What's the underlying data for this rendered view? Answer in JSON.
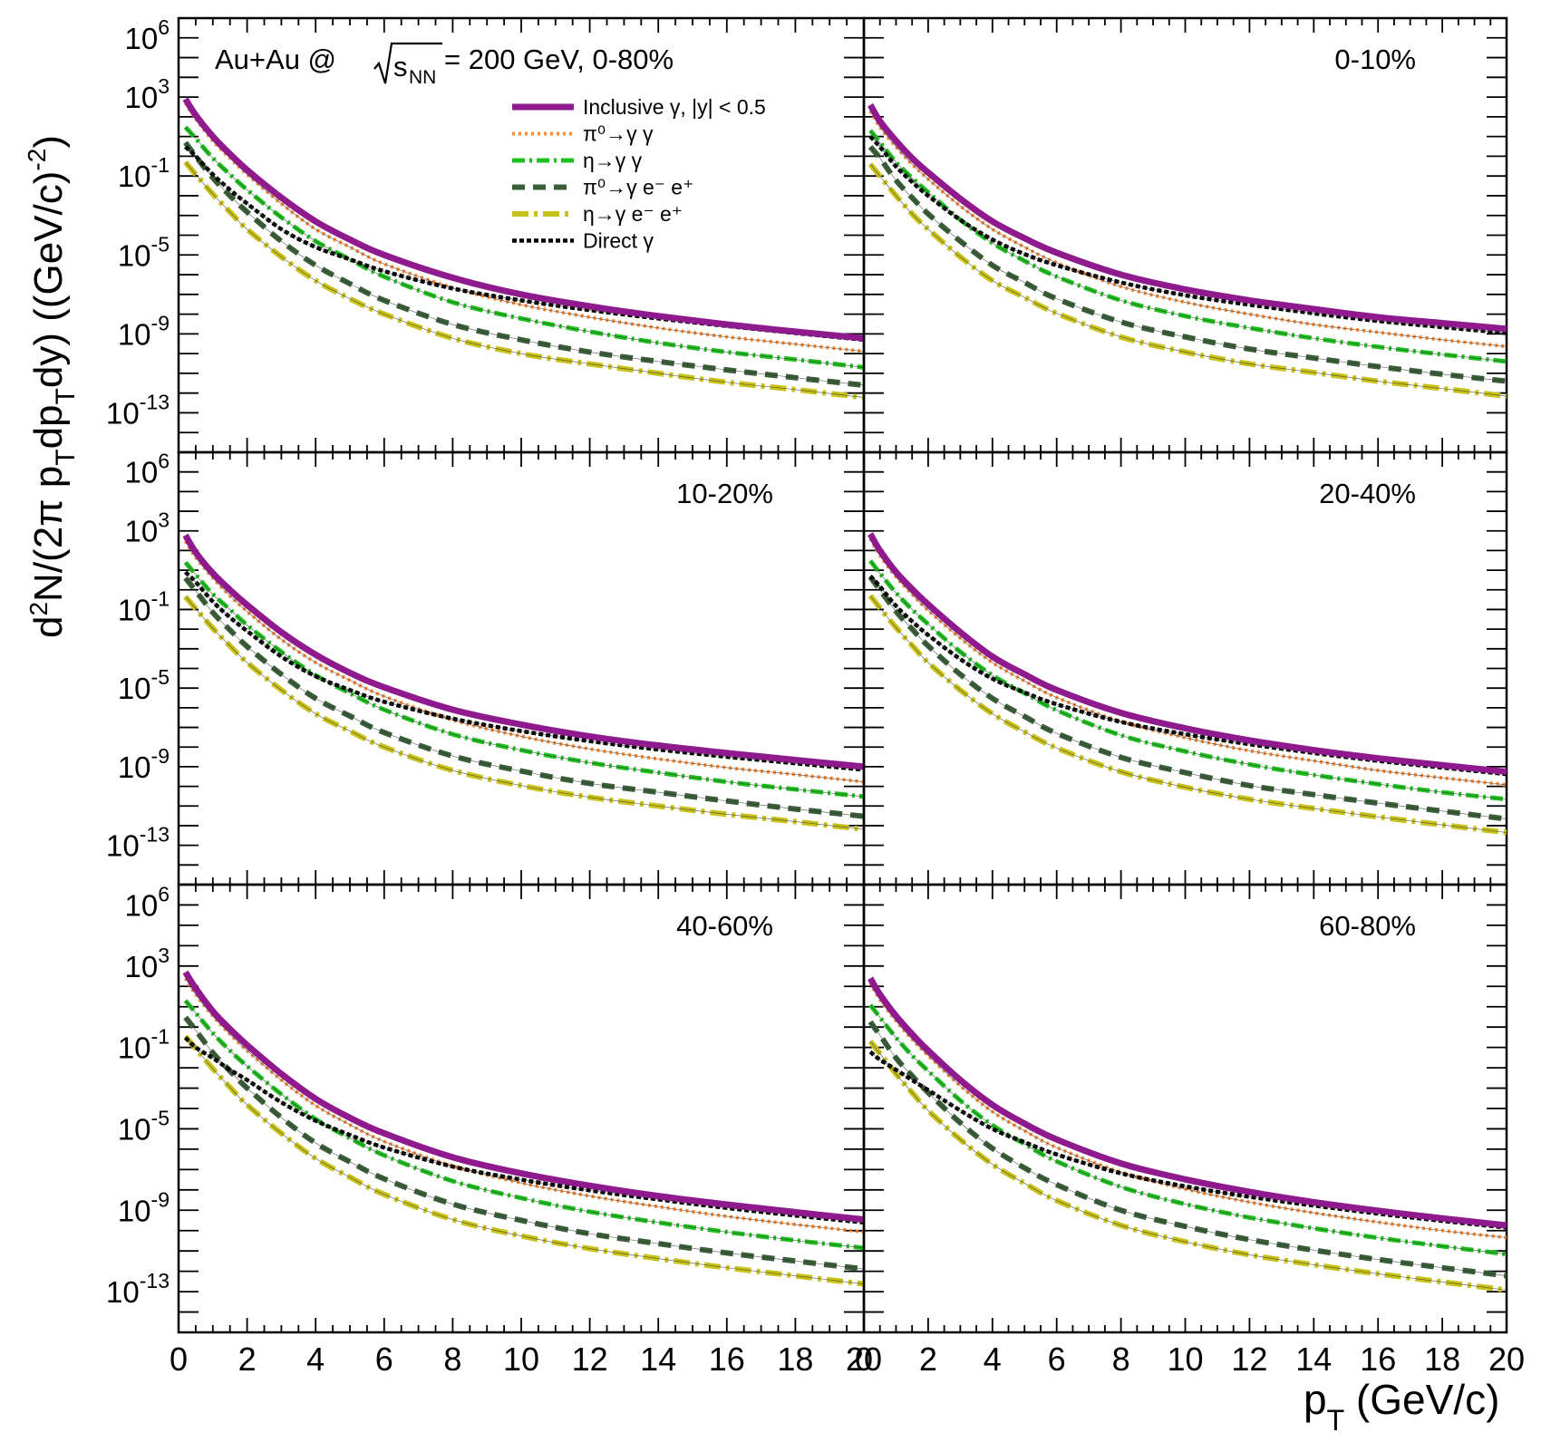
{
  "figure": {
    "title": "Au+Au @ √s_NN = 200 GeV,  0-80%",
    "title_parts": {
      "prefix": "Au+Au @ ",
      "root": "s",
      "root_sub": "NN",
      "suffix": " = 200 GeV,  0-80%"
    },
    "ylabel": "d²N/(2π p_T dp_T dy)  ((GeV/c)⁻²)",
    "ylabel_parts": {
      "d": "d",
      "sup2": "2",
      "mid": "N/(2π p",
      "subT1": "T",
      "dp": "dp",
      "subT2": "T",
      "dy": "dy)  ((GeV/c)",
      "supm2": "-2",
      "close": ")"
    },
    "xlabel": "p_T (GeV/c)",
    "xlabel_parts": {
      "p": "p",
      "sub": "T",
      "unit": " (GeV/c)"
    },
    "y_tick_labels": [
      {
        "base": "10",
        "exp": "6"
      },
      {
        "base": "10",
        "exp": "3"
      },
      {
        "base": "10",
        "exp": "-1"
      },
      {
        "base": "10",
        "exp": "-5"
      },
      {
        "base": "10",
        "exp": "-9"
      },
      {
        "base": "10",
        "exp": "-13"
      }
    ],
    "x_tick_labels": [
      "0",
      "2",
      "4",
      "6",
      "8",
      "10",
      "12",
      "14",
      "16",
      "18",
      "20"
    ],
    "legend": [
      {
        "label": "Inclusive γ, |y| < 0.5",
        "series": "inclusive"
      },
      {
        "label": "π⁰→γ γ",
        "series": "pi0_gg"
      },
      {
        "label": "η→γ γ",
        "series": "eta_gg"
      },
      {
        "label": "π⁰→γ e⁻ e⁺",
        "series": "pi0_gee"
      },
      {
        "label": "η→γ e⁻ e⁺",
        "series": "eta_gee"
      },
      {
        "label": "Direct γ",
        "series": "direct"
      }
    ],
    "colors": {
      "inclusive": "#8e1a8e",
      "pi0_gg": "#ff8c33",
      "eta_gg": "#1fc01f",
      "pi0_gee": "#3a5e38",
      "eta_gee": "#c9c21a",
      "direct": "#000000"
    }
  },
  "chart_data": [
    {
      "type": "line",
      "panel": "0-80%",
      "label": "",
      "xlim": [
        0,
        20
      ],
      "ylim": [
        1e-15,
        10000000.0
      ],
      "yscale": "log",
      "x": [
        0.2,
        0.5,
        1,
        1.5,
        2,
        3,
        4,
        5,
        6,
        8,
        10,
        12,
        14,
        16,
        18,
        20
      ],
      "series": [
        {
          "name": "Inclusive γ, |y| < 0.5",
          "key": "inclusive",
          "values": [
            800,
            120,
            10,
            1.3,
            0.2,
            0.008,
            0.0005,
            6e-05,
            1e-05,
            7e-07,
            1e-07,
            2.5e-08,
            8e-09,
            3e-09,
            1.3e-09,
            6e-10
          ]
        },
        {
          "name": "π⁰→γ γ",
          "key": "pi0_gg",
          "values": [
            500,
            80,
            6,
            0.8,
            0.12,
            0.004,
            0.0002,
            2.5e-05,
            3.5e-06,
            2.2e-07,
            3e-08,
            7e-09,
            2e-09,
            7e-10,
            3e-10,
            1.3e-10
          ]
        },
        {
          "name": "η→γ γ",
          "key": "eta_gg",
          "values": [
            30,
            8,
            0.8,
            0.12,
            0.02,
            0.0008,
            5e-05,
            6e-06,
            8e-07,
            4e-08,
            6e-09,
            1.3e-09,
            3.5e-10,
            1.2e-10,
            5e-11,
            2e-11
          ]
        },
        {
          "name": "π⁰→γ e⁻ e⁺",
          "key": "pi0_gee",
          "values": [
            5,
            1,
            0.08,
            0.01,
            0.0015,
            5e-05,
            3e-06,
            3.5e-07,
            5e-08,
            3e-09,
            5e-10,
            1.2e-10,
            4e-11,
            1.5e-11,
            6e-12,
            2.5e-12
          ]
        },
        {
          "name": "η→γ e⁻ e⁺",
          "key": "eta_gee",
          "values": [
            0.5,
            0.12,
            0.012,
            0.0015,
            0.0002,
            8e-06,
            5e-07,
            6e-08,
            1e-08,
            6e-10,
            1e-10,
            3e-11,
            1e-11,
            3.5e-12,
            1.5e-12,
            6e-13
          ]
        },
        {
          "name": "Direct γ",
          "key": "direct",
          "values": [
            3,
            1,
            0.12,
            0.02,
            0.004,
            0.0002,
            2.5e-05,
            6e-06,
            1.5e-06,
            2e-07,
            5e-08,
            1.6e-08,
            6e-09,
            2.5e-09,
            1.1e-09,
            5e-10
          ]
        }
      ]
    },
    {
      "type": "line",
      "panel": "0-10%",
      "label": "0-10%",
      "xlim": [
        0,
        20
      ],
      "ylim": [
        1e-15,
        10000000.0
      ],
      "yscale": "log",
      "x": [
        0.2,
        0.5,
        1,
        1.5,
        2,
        3,
        4,
        5,
        6,
        8,
        10,
        12,
        14,
        16,
        18,
        20
      ],
      "series": [
        {
          "name": "Inclusive γ, |y| < 0.5",
          "key": "inclusive",
          "values": [
            400,
            60,
            6,
            0.8,
            0.15,
            0.007,
            0.0005,
            7e-05,
            1.3e-05,
            1e-06,
            1.8e-07,
            5e-08,
            1.8e-08,
            7e-09,
            3.5e-09,
            1.8e-09
          ]
        },
        {
          "name": "π⁰→γ γ",
          "key": "pi0_gg",
          "values": [
            200,
            30,
            3,
            0.4,
            0.07,
            0.003,
            0.0002,
            2.5e-05,
            4e-06,
            2.5e-07,
            4e-08,
            1e-08,
            3e-09,
            1.2e-09,
            5e-10,
            2.3e-10
          ]
        },
        {
          "name": "η→γ γ",
          "key": "eta_gg",
          "values": [
            20,
            5,
            0.5,
            0.08,
            0.015,
            0.0006,
            4e-05,
            5e-06,
            8e-07,
            5e-08,
            8e-09,
            2e-09,
            6e-10,
            2.2e-10,
            9e-11,
            4e-11
          ]
        },
        {
          "name": "π⁰→γ e⁻ e⁺",
          "key": "pi0_gee",
          "values": [
            3,
            0.8,
            0.06,
            0.008,
            0.0012,
            5e-05,
            3e-06,
            4e-07,
            6e-08,
            4e-09,
            7e-10,
            1.7e-10,
            6e-11,
            2.2e-11,
            9e-12,
            4e-12
          ]
        },
        {
          "name": "η→γ e⁻ e⁺",
          "key": "eta_gee",
          "values": [
            0.4,
            0.1,
            0.01,
            0.0012,
            0.0002,
            8e-06,
            5e-07,
            7e-08,
            1.1e-08,
            7e-10,
            1.2e-10,
            3e-11,
            1.1e-11,
            4e-12,
            1.7e-12,
            7e-13
          ]
        },
        {
          "name": "Direct γ",
          "key": "direct",
          "values": [
            10,
            3,
            0.3,
            0.05,
            0.01,
            0.0006,
            6e-05,
            1.1e-05,
            3e-06,
            4e-07,
            9e-08,
            3e-08,
            1.1e-08,
            4.5e-09,
            2.2e-09,
            1.1e-09
          ]
        }
      ]
    },
    {
      "type": "line",
      "panel": "10-20%",
      "label": "10-20%",
      "xlim": [
        0,
        20
      ],
      "ylim": [
        1e-15,
        10000000.0
      ],
      "yscale": "log",
      "x": [
        0.2,
        0.5,
        1,
        1.5,
        2,
        3,
        4,
        5,
        6,
        8,
        10,
        12,
        14,
        16,
        18,
        20
      ],
      "series": [
        {
          "name": "Inclusive γ, |y| < 0.5",
          "key": "inclusive",
          "values": [
            600,
            80,
            7,
            1,
            0.17,
            0.007,
            0.0005,
            6e-05,
            1.1e-05,
            8e-07,
            1.4e-07,
            3.5e-08,
            1.2e-08,
            5e-09,
            2.2e-09,
            1e-09
          ]
        },
        {
          "name": "π⁰→γ γ",
          "key": "pi0_gg",
          "values": [
            300,
            45,
            4,
            0.5,
            0.08,
            0.003,
            0.0002,
            2.5e-05,
            3.8e-06,
            2.4e-07,
            3.5e-08,
            8e-09,
            2.5e-09,
            9e-10,
            4e-10,
            1.7e-10
          ]
        },
        {
          "name": "η→γ γ",
          "key": "eta_gg",
          "values": [
            25,
            6,
            0.6,
            0.1,
            0.016,
            0.0007,
            4.5e-05,
            5.5e-06,
            8e-07,
            4.5e-08,
            7e-09,
            1.6e-09,
            5e-10,
            1.7e-10,
            7e-11,
            3e-11
          ]
        },
        {
          "name": "π⁰→γ e⁻ e⁺",
          "key": "pi0_gee",
          "values": [
            4,
            0.9,
            0.07,
            0.009,
            0.0013,
            5e-05,
            3e-06,
            3.8e-07,
            5.5e-08,
            3.5e-09,
            6e-10,
            1.4e-10,
            5e-11,
            1.8e-11,
            7e-12,
            3e-12
          ]
        },
        {
          "name": "η→γ e⁻ e⁺",
          "key": "eta_gee",
          "values": [
            0.45,
            0.11,
            0.011,
            0.0014,
            0.0002,
            8e-06,
            5e-07,
            6.5e-08,
            1e-08,
            6.5e-10,
            1.1e-10,
            2.8e-11,
            1e-11,
            3.8e-12,
            1.6e-12,
            6.5e-13
          ]
        },
        {
          "name": "Direct γ",
          "key": "direct",
          "values": [
            8,
            2.5,
            0.25,
            0.04,
            0.008,
            0.0004,
            4e-05,
            8e-06,
            2e-06,
            2.8e-07,
            6.5e-08,
            2e-08,
            7.5e-09,
            3.2e-09,
            1.5e-09,
            7e-10
          ]
        }
      ]
    },
    {
      "type": "line",
      "panel": "20-40%",
      "label": "20-40%",
      "xlim": [
        0,
        20
      ],
      "ylim": [
        1e-15,
        10000000.0
      ],
      "yscale": "log",
      "x": [
        0.2,
        0.5,
        1,
        1.5,
        2,
        3,
        4,
        5,
        6,
        8,
        10,
        12,
        14,
        16,
        18,
        20
      ],
      "series": [
        {
          "name": "Inclusive γ, |y| < 0.5",
          "key": "inclusive",
          "values": [
            700,
            100,
            8,
            1.1,
            0.18,
            0.007,
            0.0004,
            5e-05,
            8e-06,
            5.5e-07,
            9e-08,
            2.2e-08,
            7e-09,
            2.7e-09,
            1.2e-09,
            5.5e-10
          ]
        },
        {
          "name": "π⁰→γ γ",
          "key": "pi0_gg",
          "values": [
            400,
            55,
            4.5,
            0.6,
            0.09,
            0.0035,
            0.0002,
            2.3e-05,
            3.3e-06,
            2e-07,
            3e-08,
            6.5e-09,
            2e-09,
            6.5e-10,
            2.7e-10,
            1.2e-10
          ]
        },
        {
          "name": "η→γ γ",
          "key": "eta_gg",
          "values": [
            30,
            7,
            0.7,
            0.1,
            0.018,
            0.0007,
            4.5e-05,
            5.5e-06,
            7.5e-07,
            4e-08,
            6e-09,
            1.3e-09,
            3.8e-10,
            1.3e-10,
            5e-11,
            2.2e-11
          ]
        },
        {
          "name": "π⁰→γ e⁻ e⁺",
          "key": "pi0_gee",
          "values": [
            4.5,
            1,
            0.08,
            0.01,
            0.0014,
            5e-05,
            3e-06,
            3.6e-07,
            5e-08,
            3e-09,
            5e-10,
            1.1e-10,
            3.8e-11,
            1.4e-11,
            5.5e-12,
            2.2e-12
          ]
        },
        {
          "name": "η→γ e⁻ e⁺",
          "key": "eta_gee",
          "values": [
            0.5,
            0.12,
            0.012,
            0.0015,
            0.0002,
            8e-06,
            5e-07,
            6e-08,
            9e-09,
            5.5e-10,
            9e-11,
            2.2e-11,
            7.5e-12,
            2.8e-12,
            1.1e-12,
            4.5e-13
          ]
        },
        {
          "name": "Direct γ",
          "key": "direct",
          "values": [
            5,
            1.5,
            0.15,
            0.025,
            0.005,
            0.0003,
            3e-05,
            6e-06,
            1.5e-06,
            1.9e-07,
            4.5e-08,
            1.4e-08,
            5e-09,
            2e-09,
            9e-10,
            4.2e-10
          ]
        }
      ]
    },
    {
      "type": "line",
      "panel": "40-60%",
      "label": "40-60%",
      "xlim": [
        0,
        20
      ],
      "ylim": [
        1e-15,
        10000000.0
      ],
      "yscale": "log",
      "x": [
        0.2,
        0.5,
        1,
        1.5,
        2,
        3,
        4,
        5,
        6,
        8,
        10,
        12,
        14,
        16,
        18,
        20
      ],
      "series": [
        {
          "name": "Inclusive γ, |y| < 0.5",
          "key": "inclusive",
          "values": [
            500,
            80,
            6,
            0.8,
            0.13,
            0.005,
            0.0003,
            3.5e-05,
            6e-06,
            4e-07,
            6.5e-08,
            1.6e-08,
            5e-09,
            1.9e-09,
            8e-10,
            3.5e-10
          ]
        },
        {
          "name": "π⁰→γ γ",
          "key": "pi0_gg",
          "values": [
            250,
            40,
            3.5,
            0.45,
            0.07,
            0.0025,
            0.00014,
            1.6e-05,
            2.4e-06,
            1.5e-07,
            2.2e-08,
            5e-09,
            1.5e-09,
            5e-10,
            2e-10,
            8.5e-11
          ]
        },
        {
          "name": "η→γ γ",
          "key": "eta_gg",
          "values": [
            20,
            5,
            0.5,
            0.07,
            0.012,
            0.0005,
            3e-05,
            3.5e-06,
            5e-07,
            2.7e-08,
            4e-09,
            8.5e-10,
            2.5e-10,
            8.5e-11,
            3.3e-11,
            1.4e-11
          ]
        },
        {
          "name": "π⁰→γ e⁻ e⁺",
          "key": "pi0_gee",
          "values": [
            3,
            0.7,
            0.055,
            0.007,
            0.001,
            3.6e-05,
            2e-06,
            2.4e-07,
            3.5e-08,
            2e-09,
            3.2e-10,
            7e-11,
            2.3e-11,
            8e-12,
            3.2e-12,
            1.3e-12
          ]
        },
        {
          "name": "η→γ e⁻ e⁺",
          "key": "eta_gee",
          "values": [
            0.35,
            0.09,
            0.009,
            0.0011,
            0.00015,
            6e-06,
            3.5e-07,
            4.2e-08,
            6e-09,
            3.5e-10,
            5.5e-11,
            1.3e-11,
            4.2e-12,
            1.5e-12,
            6e-13,
            2.4e-13
          ]
        },
        {
          "name": "Direct γ",
          "key": "direct",
          "values": [
            0.3,
            0.1,
            0.03,
            0.008,
            0.0025,
            0.0002,
            2.5e-05,
            5e-06,
            1.2e-06,
            1.4e-07,
            3.2e-08,
            9.5e-09,
            3.4e-09,
            1.3e-09,
            5.5e-10,
            2.5e-10
          ]
        }
      ]
    },
    {
      "type": "line",
      "panel": "60-80%",
      "label": "60-80%",
      "xlim": [
        0,
        20
      ],
      "ylim": [
        1e-15,
        10000000.0
      ],
      "yscale": "log",
      "x": [
        0.2,
        0.5,
        1,
        1.5,
        2,
        3,
        4,
        5,
        6,
        8,
        10,
        12,
        14,
        16,
        18,
        20
      ],
      "series": [
        {
          "name": "Inclusive γ, |y| < 0.5",
          "key": "inclusive",
          "values": [
            250,
            40,
            3.5,
            0.45,
            0.07,
            0.0025,
            0.00015,
            1.8e-05,
            3e-06,
            2e-07,
            3.3e-08,
            8e-09,
            2.5e-09,
            9.5e-10,
            4e-10,
            1.8e-10
          ]
        },
        {
          "name": "π⁰→γ γ",
          "key": "pi0_gg",
          "values": [
            150,
            22,
            2,
            0.25,
            0.04,
            0.0013,
            7e-05,
            8e-06,
            1.2e-06,
            7.5e-08,
            1.1e-08,
            2.5e-09,
            7.5e-10,
            2.6e-10,
            1e-10,
            4.5e-11
          ]
        },
        {
          "name": "η→γ γ",
          "key": "eta_gg",
          "values": [
            12,
            3,
            0.3,
            0.04,
            0.007,
            0.00025,
            1.5e-05,
            1.8e-06,
            2.5e-07,
            1.4e-08,
            2e-09,
            4.4e-10,
            1.3e-10,
            4.4e-11,
            1.7e-11,
            7e-12
          ]
        },
        {
          "name": "π⁰→γ e⁻ e⁺",
          "key": "pi0_gee",
          "values": [
            1.8,
            0.4,
            0.03,
            0.004,
            0.0006,
            2e-05,
            1.1e-06,
            1.2e-07,
            1.8e-08,
            1e-09,
            1.6e-10,
            3.6e-11,
            1.1e-11,
            3.8e-12,
            1.5e-12,
            6e-13
          ]
        },
        {
          "name": "η→γ e⁻ e⁺",
          "key": "eta_gee",
          "values": [
            0.2,
            0.05,
            0.005,
            0.0006,
            8e-05,
            3e-06,
            1.8e-07,
            2.1e-08,
            3e-09,
            1.8e-10,
            2.8e-11,
            6.5e-12,
            2.1e-12,
            7.5e-13,
            3e-13,
            1.2e-13
          ]
        },
        {
          "name": "Direct γ",
          "key": "direct",
          "values": [
            0.06,
            0.025,
            0.008,
            0.0025,
            0.0008,
            8e-05,
            1e-05,
            2.2e-06,
            5.5e-07,
            6.5e-08,
            1.5e-08,
            4.6e-09,
            1.7e-09,
            6.8e-10,
            3e-10,
            1.4e-10
          ]
        }
      ]
    }
  ]
}
